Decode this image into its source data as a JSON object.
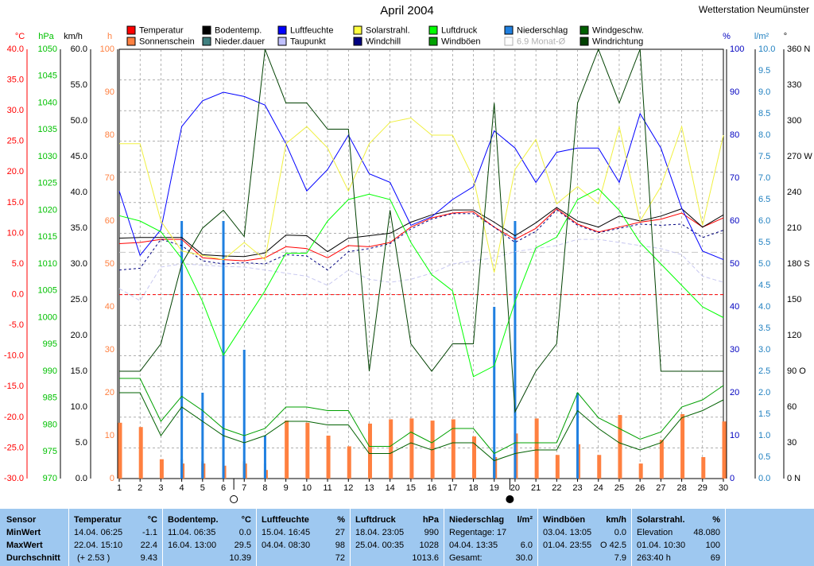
{
  "header": {
    "title": "April 2004",
    "station": "Wetterstation Neumünster"
  },
  "legend": [
    {
      "label": "Temperatur",
      "color": "#ff0000"
    },
    {
      "label": "Sonnenschein",
      "color": "#ff8040"
    },
    {
      "label": "Bodentemp.",
      "color": "#000000"
    },
    {
      "label": "Nieder.dauer",
      "color": "#408080"
    },
    {
      "label": "Luftfeuchte",
      "color": "#0000ff"
    },
    {
      "label": "Taupunkt",
      "color": "#c0c0ff"
    },
    {
      "label": "Solarstrahl.",
      "color": "#ffff40"
    },
    {
      "label": "Windchill",
      "color": "#000080"
    },
    {
      "label": "Luftdruck",
      "color": "#00ff00"
    },
    {
      "label": "Windböen",
      "color": "#00a000"
    },
    {
      "label": "Niederschlag",
      "color": "#2080e0"
    },
    {
      "label": "6.9 Monat-Ø",
      "color": "#ffffff",
      "muted": true
    },
    {
      "label": "Windgeschw.",
      "color": "#006000"
    },
    {
      "label": "Windrichtung",
      "color": "#004000"
    }
  ],
  "chart_data": {
    "type": "line",
    "x": [
      1,
      2,
      3,
      4,
      5,
      6,
      7,
      8,
      9,
      10,
      11,
      12,
      13,
      14,
      15,
      16,
      17,
      18,
      19,
      20,
      21,
      22,
      23,
      24,
      25,
      26,
      27,
      28,
      29,
      30
    ],
    "axes": {
      "temp": {
        "unit": "°C",
        "ylim": [
          -30,
          40
        ],
        "ticks": [
          "40.0",
          "35.0",
          "30.0",
          "25.0",
          "20.0",
          "15.0",
          "10.0",
          "5.0",
          "0.0",
          "-5.0",
          "-10.0",
          "-15.0",
          "-20.0",
          "-25.0",
          "-30.0"
        ],
        "color": "#ff0000"
      },
      "pressure": {
        "unit": "hPa",
        "ylim": [
          970,
          1050
        ],
        "ticks": [
          "1050",
          "1045",
          "1040",
          "1035",
          "1030",
          "1025",
          "1020",
          "1015",
          "1010",
          "1005",
          "1000",
          "995",
          "990",
          "985",
          "980",
          "975",
          "970"
        ],
        "color": "#00c000"
      },
      "wind": {
        "unit": "km/h",
        "ylim": [
          0,
          60
        ],
        "ticks": [
          "60.0",
          "55.0",
          "50.0",
          "45.0",
          "40.0",
          "35.0",
          "30.0",
          "25.0",
          "20.0",
          "15.0",
          "10.0",
          "5.0",
          "0.0"
        ],
        "color": "#000000"
      },
      "sun": {
        "unit": "h",
        "ylim": [
          0,
          100
        ],
        "ticks": [
          "100",
          "90",
          "80",
          "70",
          "60",
          "50",
          "40",
          "30",
          "20",
          "10",
          "0"
        ],
        "color": "#ff8040"
      },
      "humidity": {
        "unit": "%",
        "ylim": [
          0,
          100
        ],
        "ticks": [
          "100",
          "90",
          "80",
          "70",
          "60",
          "50",
          "40",
          "30",
          "20",
          "10",
          "0"
        ],
        "color": "#0000c0"
      },
      "rain": {
        "unit": "l/m²",
        "ylim": [
          0,
          10
        ],
        "ticks": [
          "10.0",
          "9.5",
          "9.0",
          "8.5",
          "8.0",
          "7.5",
          "7.0",
          "6.5",
          "6.0",
          "5.5",
          "5.0",
          "4.5",
          "4.0",
          "3.5",
          "3.0",
          "2.5",
          "2.0",
          "1.5",
          "1.0",
          "0.5",
          "0.0"
        ],
        "color": "#2080c0"
      },
      "direction": {
        "unit": "°",
        "ylim": [
          0,
          360
        ],
        "ticks": [
          "360 N",
          "330",
          "300",
          "270 W",
          "240",
          "210",
          "180 S",
          "150",
          "120",
          "90 O",
          "60",
          "30",
          "0 N"
        ],
        "color": "#000000"
      }
    },
    "series": [
      {
        "name": "Temperatur",
        "axis": "temp",
        "color": "#ff0000",
        "values": [
          8.3,
          8.5,
          9.0,
          9.0,
          6.0,
          5.7,
          5.5,
          6.0,
          7.8,
          7.5,
          6.0,
          8.0,
          7.8,
          8.5,
          11.0,
          12.5,
          13.3,
          13.5,
          11.0,
          9.0,
          10.8,
          14.0,
          11.5,
          10.2,
          11.0,
          11.8,
          12.3,
          13.3,
          11.0,
          12.5
        ]
      },
      {
        "name": "Bodentemp.",
        "axis": "temp",
        "color": "#000000",
        "values": [
          9.2,
          9.3,
          9.3,
          9.3,
          6.5,
          6.3,
          6.2,
          6.8,
          9.7,
          9.6,
          7.0,
          9.2,
          9.6,
          10.0,
          11.8,
          13.0,
          13.8,
          13.8,
          11.8,
          9.6,
          11.7,
          14.2,
          12.0,
          11.0,
          12.8,
          12.0,
          12.8,
          14.0,
          11.0,
          13.0
        ]
      },
      {
        "name": "Windchill",
        "axis": "temp",
        "color": "#000080",
        "dash": "3,3",
        "values": [
          4.0,
          4.3,
          9.0,
          8.0,
          5.5,
          5.0,
          5.2,
          5.0,
          6.5,
          6.3,
          4.0,
          7.0,
          7.5,
          8.3,
          10.7,
          12.3,
          13.2,
          13.2,
          11.0,
          8.5,
          10.3,
          13.8,
          11.3,
          10.1,
          10.8,
          11.5,
          11.3,
          11.5,
          9.3,
          10.5
        ]
      },
      {
        "name": "Taupunkt",
        "axis": "temp",
        "color": "#c8c8f0",
        "dash": "5,3",
        "values": [
          1.0,
          -1.0,
          4.5,
          5.0,
          4.8,
          4.6,
          4.5,
          4.0,
          3.5,
          3.0,
          1.5,
          4.0,
          2.5,
          2.0,
          2.5,
          3.5,
          5.0,
          5.5,
          6.0,
          7.0,
          7.5,
          8.0,
          9.0,
          9.0,
          8.5,
          8.0,
          7.5,
          6.5,
          3.0,
          2.0
        ]
      },
      {
        "name": "Luftfeuchte",
        "axis": "humidity",
        "color": "#0000ff",
        "values": [
          67,
          52,
          58,
          82,
          88,
          90,
          89,
          87,
          78,
          67,
          72,
          80,
          71,
          69,
          59,
          61,
          65,
          68,
          81,
          77,
          69,
          76,
          77,
          77,
          69,
          85,
          77,
          63,
          53,
          51
        ]
      },
      {
        "name": "Solarstrahl.",
        "axis": "humidity",
        "color": "#f0f040",
        "values": [
          78,
          78,
          60,
          53,
          52,
          51,
          55,
          51,
          78,
          82,
          77,
          67,
          78,
          83,
          84,
          80,
          80,
          70,
          48,
          72,
          79,
          64,
          68,
          64,
          82,
          60,
          68,
          82,
          59,
          80
        ]
      },
      {
        "name": "Luftdruck",
        "axis": "pressure",
        "color": "#00ff00",
        "values": [
          1019,
          1018,
          1016,
          1011,
          1003,
          993,
          999,
          1005,
          1012,
          1012,
          1018,
          1022,
          1023,
          1022,
          1014,
          1008,
          1005,
          989,
          991,
          1003,
          1013,
          1015,
          1022,
          1024,
          1020,
          1014,
          1010,
          1006,
          1002,
          1000
        ]
      },
      {
        "name": "Windböen",
        "axis": "wind",
        "color": "#00a000",
        "values": [
          14,
          14,
          8,
          11.5,
          9.5,
          7,
          6,
          7,
          10,
          10,
          9.5,
          9.5,
          4.5,
          4.5,
          6.5,
          5,
          7,
          7,
          3.5,
          5,
          5,
          5,
          12,
          8.5,
          7,
          5.5,
          6.5,
          10,
          11,
          13
        ]
      },
      {
        "name": "Windgeschw.",
        "axis": "wind",
        "color": "#006000",
        "values": [
          12,
          12,
          6,
          10,
          8,
          6,
          5,
          6,
          8,
          8,
          7.5,
          7.5,
          3.5,
          3.5,
          5,
          4,
          5,
          5,
          2.5,
          3.5,
          4,
          4,
          9.5,
          7,
          5,
          4,
          5,
          8.5,
          9.5,
          11
        ]
      },
      {
        "name": "Windrichtung",
        "axis": "direction",
        "color": "#004000",
        "values": [
          90,
          90,
          113,
          180,
          210,
          225,
          203,
          360,
          315,
          315,
          293,
          293,
          90,
          225,
          113,
          90,
          113,
          113,
          315,
          56,
          90,
          113,
          315,
          360,
          315,
          360,
          90,
          90,
          90,
          90
        ]
      }
    ],
    "bars": [
      {
        "name": "Sonnenschein",
        "axis": "sun",
        "color": "#ff8040",
        "width": 5,
        "values": [
          13,
          12,
          4.5,
          3.5,
          3.5,
          3,
          3.5,
          2,
          13.5,
          13,
          10,
          7.5,
          12.8,
          13.8,
          14,
          13.5,
          13.8,
          9.8,
          5,
          10.5,
          14,
          5.5,
          8,
          5.5,
          14.8,
          3.5,
          9,
          15,
          5,
          13.3
        ]
      },
      {
        "name": "Nieder.dauer",
        "axis": "sun",
        "color": "#408080",
        "width": 3,
        "values": [
          0,
          0,
          0,
          4.5,
          4,
          7,
          4,
          3.5,
          0,
          0,
          0,
          0,
          0,
          0,
          0,
          0,
          0,
          0,
          5.5,
          0,
          0,
          0,
          0,
          0,
          0,
          0,
          0,
          0,
          0,
          0
        ]
      },
      {
        "name": "Niederschlag",
        "axis": "rain",
        "color": "#2080e0",
        "width": 3,
        "values": [
          0,
          0,
          0,
          6.0,
          2.0,
          6.0,
          3.0,
          1.0,
          0,
          0,
          0,
          0,
          0,
          0,
          0,
          0,
          0,
          0,
          4.0,
          6.0,
          0,
          0,
          2.0,
          0,
          0,
          0,
          0,
          0,
          0,
          0
        ]
      }
    ],
    "reference_lines": [
      {
        "axis": "temp",
        "value": 0,
        "color": "#ff0000",
        "dash": "4,3"
      },
      {
        "axis": "temp",
        "value": 6.9,
        "color": "#c8c8c8",
        "dash": "8,4"
      }
    ],
    "moon_markers": [
      {
        "x": 6.5,
        "phase": "new"
      },
      {
        "x": 19.75,
        "phase": "full"
      }
    ],
    "grid": true
  },
  "stats": {
    "sensor": {
      "title": "Sensor",
      "rows": [
        "MinWert",
        "MaxWert",
        "Durchschnitt"
      ]
    },
    "temperature": {
      "title": "Temperatur",
      "unit": "°C",
      "min_date": "14.04.  06:25",
      "min_val": "-1.1",
      "max_date": "22.04.  15:10",
      "max_val": "22.4",
      "avg_note": "(+ 2.53 )",
      "avg_val": "9.43"
    },
    "soil": {
      "title": "Bodentemp.",
      "unit": "°C",
      "min_date": "11.04.  06:35",
      "min_val": "0.0",
      "max_date": "16.04.  13:00",
      "max_val": "29.5",
      "avg_val": "10.39"
    },
    "humidity": {
      "title": "Luftfeuchte",
      "unit": "%",
      "min_date": "15.04.  16:45",
      "min_val": "27",
      "max_date": "04.04.  08:30",
      "max_val": "98",
      "avg_val": "72"
    },
    "pressure": {
      "title": "Luftdruck",
      "unit": "hPa",
      "min_date": "18.04.  23:05",
      "min_val": "990",
      "max_date": "25.04.  00:35",
      "max_val": "1028",
      "avg_val": "1013.6"
    },
    "rain": {
      "title": "Niederschlag",
      "unit": "l/m²",
      "row1": "Regentage: 17",
      "row2_date": "04.04.  13:35",
      "row2_val": "6.0",
      "row3_label": "Gesamt:",
      "row3_val": "30.0"
    },
    "gusts": {
      "title": "Windböen",
      "unit": "km/h",
      "min_date": "03.04.  13:05",
      "min_val": "0.0",
      "max_date": "01.04.  23:55",
      "max_val": "O 42.5",
      "avg_val": "7.9"
    },
    "solar": {
      "title": "Solarstrahl.",
      "unit": "%",
      "row1_label": "Elevation",
      "row1_val": "48.080",
      "row2_date": "01.04.  10:30",
      "row2_val": "100",
      "row3_label": "263:40 h",
      "row3_val": "69"
    }
  }
}
